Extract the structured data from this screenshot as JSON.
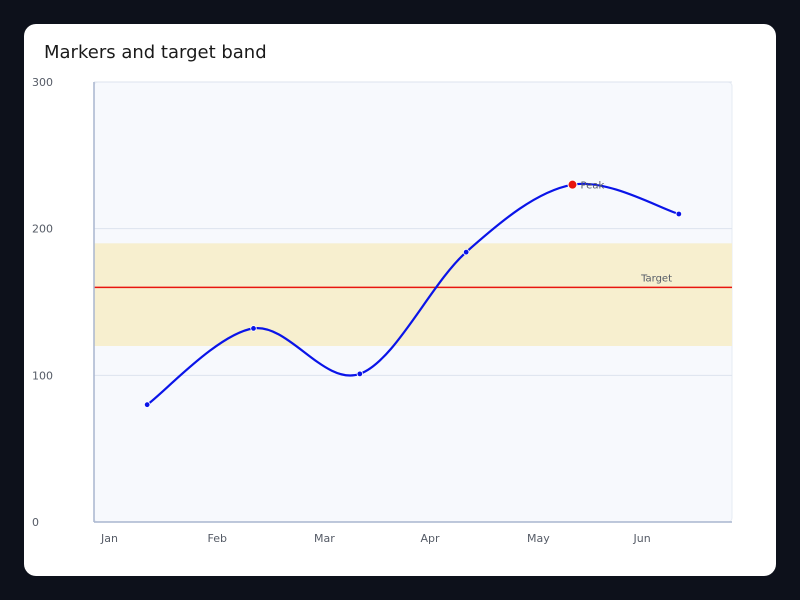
{
  "chart_data": {
    "type": "line",
    "title": "Markers and target band",
    "xlabel": "",
    "ylabel": "",
    "categories": [
      "Jan",
      "Feb",
      "Mar",
      "Apr",
      "May",
      "Jun"
    ],
    "ylim": [
      0,
      300
    ],
    "yticks": [
      0,
      100,
      200,
      300
    ],
    "grid": true,
    "series": [
      {
        "values": [
          80,
          132,
          101,
          184,
          230,
          210
        ],
        "color": "#0a14e8"
      }
    ],
    "target_band": {
      "from": 120,
      "to": 190,
      "color": "#f7efcf"
    },
    "target_line": {
      "value": 160,
      "label": "Target",
      "color": "#e8150f"
    },
    "highlight": {
      "index": 4,
      "label": "Peak",
      "color": "#e8150f"
    },
    "colors": {
      "plot_background": "#f7f9fd",
      "axis": "#a9b6cf",
      "grid": "#dde3ee"
    }
  }
}
